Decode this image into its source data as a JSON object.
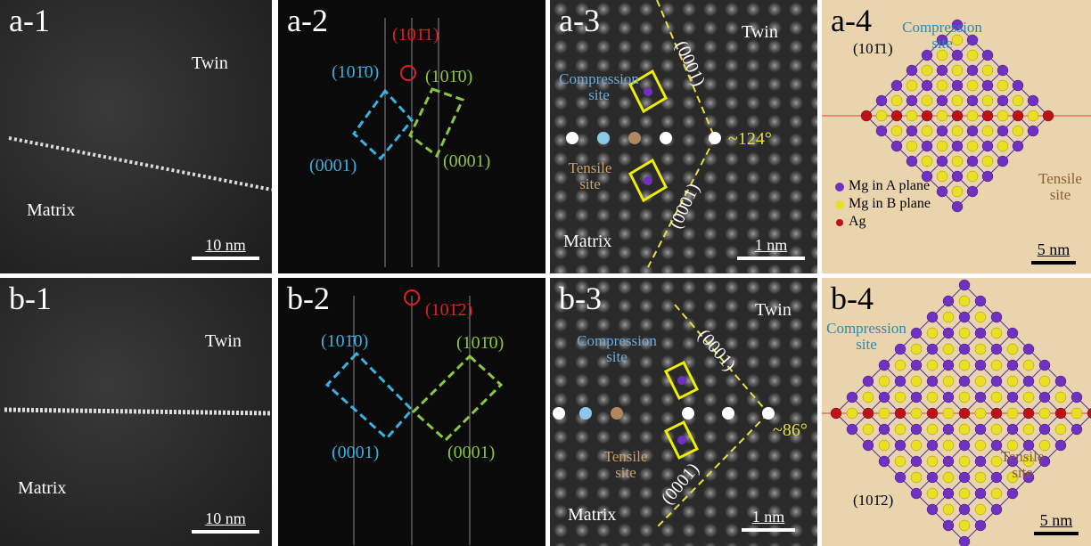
{
  "panels": [
    {
      "label": "a-1",
      "annotations": [
        "Twin",
        "Matrix"
      ],
      "scale_bar": "10 nm"
    },
    {
      "label": "a-2",
      "annotations": [
        "(101̄1)",
        "(101̄0)",
        "(101̄0)",
        "(0001)",
        "(0001)"
      ]
    },
    {
      "label": "a-3",
      "annotations": [
        "Twin",
        "Compression site",
        "(0001)",
        "~124°",
        "Tensile site",
        "(0001)",
        "Matrix"
      ],
      "scale_bar": "1 nm"
    },
    {
      "label": "a-4",
      "annotations": [
        "Compression site",
        "(101̄1)",
        "Tensile site"
      ],
      "legend": [
        "Mg in A plane",
        "Mg in B plane",
        "Ag"
      ],
      "scale_bar": "5 nm"
    },
    {
      "label": "b-1",
      "annotations": [
        "Twin",
        "Matrix"
      ],
      "scale_bar": "10 nm"
    },
    {
      "label": "b-2",
      "annotations": [
        "(101̄2)",
        "(101̄0)",
        "(101̄0)",
        "(0001)",
        "(0001)"
      ]
    },
    {
      "label": "b-3",
      "annotations": [
        "Twin",
        "Compression site",
        "(0001)",
        "~86°",
        "Tensile site",
        "(0001)",
        "Matrix"
      ],
      "scale_bar": "1 nm"
    },
    {
      "label": "b-4",
      "annotations": [
        "Compression site",
        "(101̄2)",
        "Tensile site"
      ],
      "scale_bar": "5 nm"
    }
  ]
}
